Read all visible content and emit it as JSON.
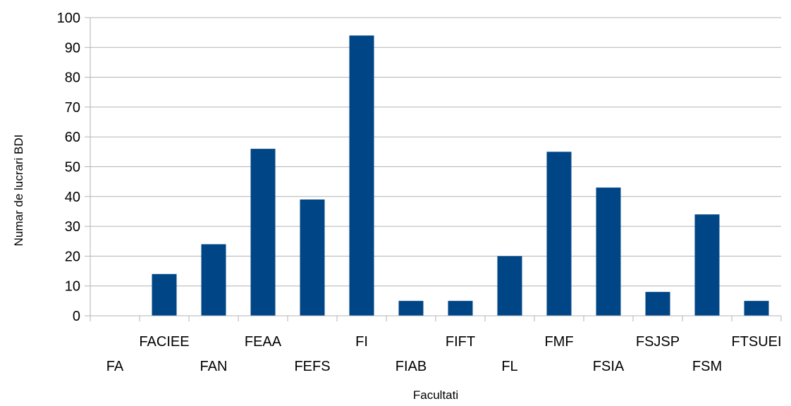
{
  "chart_data": {
    "type": "bar",
    "title": "",
    "xlabel": "Facultati",
    "ylabel": "Numar de lucrari BDI",
    "ylim": [
      0,
      100
    ],
    "ytick_step": 10,
    "grid": true,
    "legend": "none",
    "bar_color": "#004586",
    "grid_color": "#b3b3b3",
    "categories": [
      "FA",
      "FACIEE",
      "FAN",
      "FEAA",
      "FEFS",
      "FI",
      "FIAB",
      "FIFT",
      "FL",
      "FMF",
      "FSIA",
      "FSJSP",
      "FSM",
      "FTSUEI"
    ],
    "values": [
      0,
      14,
      24,
      56,
      39,
      94,
      5,
      5,
      20,
      55,
      43,
      8,
      34,
      5
    ]
  }
}
